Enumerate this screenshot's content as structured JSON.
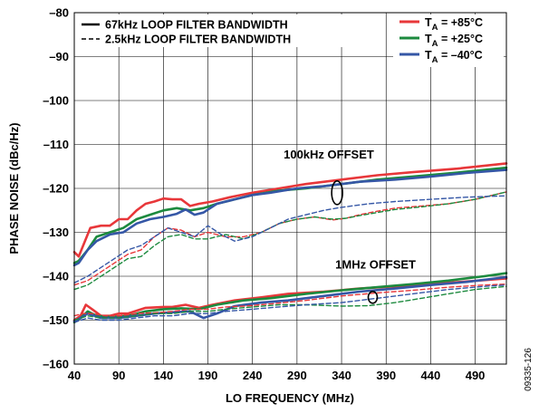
{
  "chart_data": {
    "type": "line",
    "xlabel": "LO FREQUENCY (MHz)",
    "ylabel": "PHASE NOISE (dBc/Hz)",
    "xlim": [
      40,
      525
    ],
    "ylim": [
      -160,
      -80
    ],
    "x_ticks": [
      "40",
      "90",
      "140",
      "190",
      "240",
      "290",
      "340",
      "390",
      "440",
      "490"
    ],
    "y_ticks": [
      "–80",
      "–90",
      "–100",
      "–110",
      "–120",
      "–130",
      "–140",
      "–150",
      "–160"
    ],
    "grid": true,
    "figure_code": "09335-126",
    "legend_style": [
      {
        "label": "67kHz LOOP FILTER BANDWIDTH",
        "dash": "solid"
      },
      {
        "label": "2.5kHz LOOP FILTER BANDWIDTH",
        "dash": "dashed"
      }
    ],
    "legend_temp": [
      {
        "sym": "T",
        "sub": "A",
        "val": " = +85°C",
        "color": "#e8373a"
      },
      {
        "sym": "T",
        "sub": "A",
        "val": " = +25°C",
        "color": "#1c8a3e"
      },
      {
        "sym": "T",
        "sub": "A",
        "val": " = –40°C",
        "color": "#3557a6"
      }
    ],
    "annotations": [
      {
        "text": "100kHz OFFSET",
        "x": 275,
        "y": -113.2
      },
      {
        "text": "1MHz OFFSET",
        "x": 333,
        "y": -138.2
      }
    ],
    "series": [
      {
        "temp": "+85°C",
        "bandwidth": "67kHz",
        "offset": "100kHz",
        "color": "#e8373a",
        "dash": "solid",
        "points": [
          [
            40,
            -134.5
          ],
          [
            45,
            -135.5
          ],
          [
            50,
            -133
          ],
          [
            58,
            -129
          ],
          [
            70,
            -128.5
          ],
          [
            80,
            -128.5
          ],
          [
            90,
            -127
          ],
          [
            100,
            -127
          ],
          [
            110,
            -125
          ],
          [
            120,
            -123.5
          ],
          [
            130,
            -123
          ],
          [
            140,
            -122.3
          ],
          [
            150,
            -122.5
          ],
          [
            160,
            -122.5
          ],
          [
            170,
            -124
          ],
          [
            180,
            -123.5
          ],
          [
            195,
            -123
          ],
          [
            215,
            -122
          ],
          [
            240,
            -121
          ],
          [
            270,
            -120
          ],
          [
            300,
            -119
          ],
          [
            340,
            -118
          ],
          [
            380,
            -117
          ],
          [
            420,
            -116.3
          ],
          [
            470,
            -115.5
          ],
          [
            525,
            -114.3
          ]
        ]
      },
      {
        "temp": "+25°C",
        "bandwidth": "67kHz",
        "offset": "100kHz",
        "color": "#1c8a3e",
        "dash": "solid",
        "points": [
          [
            40,
            -137
          ],
          [
            45,
            -136.5
          ],
          [
            55,
            -134
          ],
          [
            65,
            -131
          ],
          [
            80,
            -130
          ],
          [
            95,
            -129
          ],
          [
            110,
            -127
          ],
          [
            125,
            -126
          ],
          [
            140,
            -125
          ],
          [
            155,
            -124.5
          ],
          [
            170,
            -125
          ],
          [
            185,
            -124.5
          ],
          [
            200,
            -123.5
          ],
          [
            220,
            -122.5
          ],
          [
            240,
            -121.5
          ],
          [
            270,
            -120.5
          ],
          [
            300,
            -120
          ],
          [
            340,
            -119
          ],
          [
            380,
            -118
          ],
          [
            420,
            -117.3
          ],
          [
            470,
            -116.4
          ],
          [
            525,
            -115.3
          ]
        ]
      },
      {
        "temp": "–40°C",
        "bandwidth": "67kHz",
        "offset": "100kHz",
        "color": "#3557a6",
        "dash": "solid",
        "points": [
          [
            40,
            -137.5
          ],
          [
            45,
            -137
          ],
          [
            55,
            -134
          ],
          [
            65,
            -132
          ],
          [
            80,
            -130.5
          ],
          [
            95,
            -130
          ],
          [
            110,
            -128
          ],
          [
            125,
            -127
          ],
          [
            140,
            -126.5
          ],
          [
            155,
            -125.8
          ],
          [
            165,
            -124.8
          ],
          [
            175,
            -126
          ],
          [
            185,
            -125.5
          ],
          [
            200,
            -123.5
          ],
          [
            220,
            -122.5
          ],
          [
            240,
            -121.5
          ],
          [
            260,
            -121
          ],
          [
            290,
            -120
          ],
          [
            320,
            -119.5
          ],
          [
            360,
            -118.5
          ],
          [
            400,
            -118
          ],
          [
            440,
            -117.3
          ],
          [
            480,
            -116.5
          ],
          [
            525,
            -115.8
          ]
        ]
      },
      {
        "temp": "+85°C",
        "bandwidth": "2.5kHz",
        "offset": "100kHz",
        "color": "#e8373a",
        "dash": "dashed",
        "points": [
          [
            40,
            -142
          ],
          [
            55,
            -141
          ],
          [
            70,
            -139
          ],
          [
            85,
            -137
          ],
          [
            100,
            -135
          ],
          [
            115,
            -134
          ],
          [
            130,
            -131
          ],
          [
            145,
            -129
          ],
          [
            160,
            -129.5
          ],
          [
            175,
            -131
          ],
          [
            190,
            -130
          ],
          [
            210,
            -131
          ],
          [
            230,
            -131
          ],
          [
            250,
            -130
          ],
          [
            270,
            -128
          ],
          [
            290,
            -127
          ],
          [
            310,
            -126.5
          ],
          [
            330,
            -127.2
          ],
          [
            345,
            -126.8
          ],
          [
            360,
            -126
          ],
          [
            380,
            -125.2
          ],
          [
            400,
            -124.5
          ],
          [
            430,
            -124
          ],
          [
            460,
            -123.5
          ],
          [
            490,
            -122.5
          ],
          [
            525,
            -120.8
          ]
        ]
      },
      {
        "temp": "+25°C",
        "bandwidth": "2.5kHz",
        "offset": "100kHz",
        "color": "#1c8a3e",
        "dash": "dashed",
        "points": [
          [
            40,
            -143
          ],
          [
            55,
            -142
          ],
          [
            70,
            -140
          ],
          [
            85,
            -138
          ],
          [
            100,
            -136
          ],
          [
            115,
            -135.5
          ],
          [
            130,
            -133
          ],
          [
            145,
            -131
          ],
          [
            160,
            -130.5
          ],
          [
            175,
            -131.5
          ],
          [
            190,
            -131.5
          ],
          [
            210,
            -130.5
          ],
          [
            230,
            -131.5
          ],
          [
            250,
            -130
          ],
          [
            270,
            -128
          ],
          [
            290,
            -127
          ],
          [
            310,
            -126.5
          ],
          [
            330,
            -127
          ],
          [
            345,
            -126.8
          ],
          [
            360,
            -126.2
          ],
          [
            380,
            -125.5
          ],
          [
            400,
            -124.8
          ],
          [
            430,
            -124.2
          ],
          [
            460,
            -123.5
          ],
          [
            490,
            -122.5
          ],
          [
            525,
            -120.8
          ]
        ]
      },
      {
        "temp": "–40°C",
        "bandwidth": "2.5kHz",
        "offset": "100kHz",
        "color": "#3557a6",
        "dash": "dashed",
        "points": [
          [
            40,
            -141.5
          ],
          [
            55,
            -140
          ],
          [
            70,
            -138
          ],
          [
            85,
            -136
          ],
          [
            100,
            -134
          ],
          [
            115,
            -133
          ],
          [
            130,
            -131
          ],
          [
            145,
            -129
          ],
          [
            160,
            -130
          ],
          [
            175,
            -131
          ],
          [
            190,
            -128.5
          ],
          [
            205,
            -130.5
          ],
          [
            220,
            -132
          ],
          [
            240,
            -131
          ],
          [
            260,
            -129
          ],
          [
            280,
            -127
          ],
          [
            300,
            -126
          ],
          [
            320,
            -125
          ],
          [
            340,
            -124.3
          ],
          [
            370,
            -123.5
          ],
          [
            400,
            -123
          ],
          [
            440,
            -122.5
          ],
          [
            480,
            -122
          ],
          [
            525,
            -121.7
          ]
        ]
      },
      {
        "temp": "+85°C",
        "bandwidth": "67kHz",
        "offset": "1MHz",
        "color": "#e8373a",
        "dash": "solid",
        "points": [
          [
            40,
            -150
          ],
          [
            47,
            -149
          ],
          [
            53,
            -146.5
          ],
          [
            60,
            -147.5
          ],
          [
            70,
            -149
          ],
          [
            80,
            -149
          ],
          [
            90,
            -148.5
          ],
          [
            100,
            -148.5
          ],
          [
            120,
            -147.2
          ],
          [
            140,
            -147
          ],
          [
            150,
            -147
          ],
          [
            165,
            -146.5
          ],
          [
            180,
            -147.2
          ],
          [
            195,
            -146.5
          ],
          [
            220,
            -145.5
          ],
          [
            250,
            -144.8
          ],
          [
            280,
            -144
          ],
          [
            320,
            -143.5
          ],
          [
            360,
            -142.8
          ],
          [
            400,
            -142.3
          ],
          [
            440,
            -141.8
          ],
          [
            480,
            -141.2
          ],
          [
            525,
            -140.5
          ]
        ]
      },
      {
        "temp": "+25°C",
        "bandwidth": "67kHz",
        "offset": "1MHz",
        "color": "#1c8a3e",
        "dash": "solid",
        "points": [
          [
            40,
            -150.5
          ],
          [
            47,
            -149.5
          ],
          [
            55,
            -148
          ],
          [
            65,
            -149
          ],
          [
            80,
            -149.3
          ],
          [
            100,
            -149
          ],
          [
            120,
            -148
          ],
          [
            140,
            -147.5
          ],
          [
            160,
            -147.3
          ],
          [
            180,
            -147.5
          ],
          [
            200,
            -146.5
          ],
          [
            230,
            -145.5
          ],
          [
            260,
            -145
          ],
          [
            300,
            -144
          ],
          [
            340,
            -143.2
          ],
          [
            380,
            -142.5
          ],
          [
            420,
            -141.8
          ],
          [
            460,
            -141
          ],
          [
            500,
            -140
          ],
          [
            525,
            -139.3
          ]
        ]
      },
      {
        "temp": "–40°C",
        "bandwidth": "67kHz",
        "offset": "1MHz",
        "color": "#3557a6",
        "dash": "solid",
        "points": [
          [
            40,
            -150.2
          ],
          [
            47,
            -149.5
          ],
          [
            55,
            -148.5
          ],
          [
            70,
            -149.5
          ],
          [
            90,
            -149.5
          ],
          [
            110,
            -149
          ],
          [
            130,
            -148.5
          ],
          [
            150,
            -148.2
          ],
          [
            170,
            -148
          ],
          [
            185,
            -149.5
          ],
          [
            200,
            -148.5
          ],
          [
            220,
            -146.8
          ],
          [
            250,
            -146
          ],
          [
            280,
            -145.5
          ],
          [
            320,
            -144.5
          ],
          [
            360,
            -143.5
          ],
          [
            400,
            -142.8
          ],
          [
            440,
            -142
          ],
          [
            480,
            -141.3
          ],
          [
            525,
            -140.2
          ]
        ]
      },
      {
        "temp": "+85°C",
        "bandwidth": "2.5kHz",
        "offset": "1MHz",
        "color": "#e8373a",
        "dash": "dashed",
        "points": [
          [
            40,
            -149
          ],
          [
            50,
            -148.5
          ],
          [
            60,
            -148.5
          ],
          [
            75,
            -149
          ],
          [
            90,
            -149
          ],
          [
            110,
            -148.5
          ],
          [
            130,
            -148.3
          ],
          [
            150,
            -148
          ],
          [
            170,
            -147.5
          ],
          [
            190,
            -147.5
          ],
          [
            210,
            -147
          ],
          [
            230,
            -146.8
          ],
          [
            260,
            -146.3
          ],
          [
            300,
            -145.5
          ],
          [
            340,
            -144.5
          ],
          [
            380,
            -143.8
          ],
          [
            420,
            -143.2
          ],
          [
            460,
            -142.5
          ],
          [
            500,
            -142
          ],
          [
            525,
            -141.8
          ]
        ]
      },
      {
        "temp": "+25°C",
        "bandwidth": "2.5kHz",
        "offset": "1MHz",
        "color": "#1c8a3e",
        "dash": "dashed",
        "points": [
          [
            40,
            -150
          ],
          [
            55,
            -149
          ],
          [
            70,
            -149.5
          ],
          [
            90,
            -149.5
          ],
          [
            110,
            -149
          ],
          [
            130,
            -148.5
          ],
          [
            150,
            -148.5
          ],
          [
            170,
            -148
          ],
          [
            190,
            -148
          ],
          [
            210,
            -147.5
          ],
          [
            240,
            -147
          ],
          [
            270,
            -146.5
          ],
          [
            300,
            -146.5
          ],
          [
            340,
            -146.8
          ],
          [
            370,
            -146.7
          ],
          [
            400,
            -146
          ],
          [
            430,
            -145
          ],
          [
            460,
            -144
          ],
          [
            490,
            -143
          ],
          [
            525,
            -142.3
          ]
        ]
      },
      {
        "temp": "–40°C",
        "bandwidth": "2.5kHz",
        "offset": "1MHz",
        "color": "#3557a6",
        "dash": "dashed",
        "points": [
          [
            40,
            -150.5
          ],
          [
            55,
            -149.5
          ],
          [
            70,
            -150
          ],
          [
            90,
            -150
          ],
          [
            110,
            -149.5
          ],
          [
            130,
            -149
          ],
          [
            150,
            -149
          ],
          [
            170,
            -148.5
          ],
          [
            190,
            -148.5
          ],
          [
            210,
            -148
          ],
          [
            240,
            -147.5
          ],
          [
            270,
            -147
          ],
          [
            300,
            -146.5
          ],
          [
            340,
            -146
          ],
          [
            380,
            -145
          ],
          [
            420,
            -144
          ],
          [
            460,
            -143
          ],
          [
            500,
            -142.3
          ],
          [
            525,
            -142
          ]
        ]
      }
    ]
  }
}
